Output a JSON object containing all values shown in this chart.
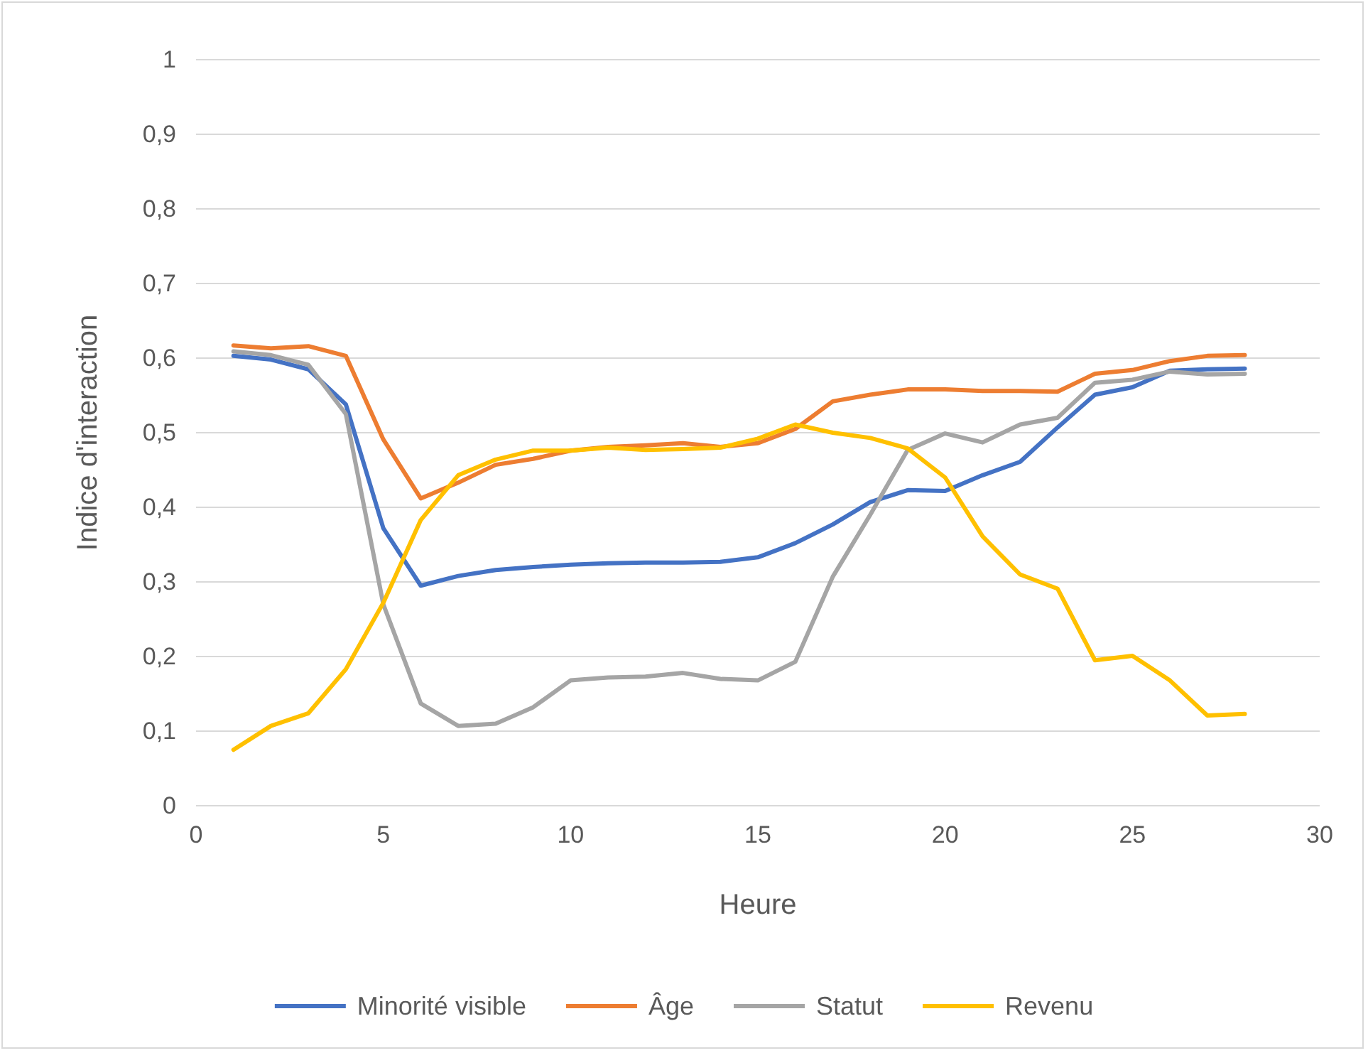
{
  "chart_data": {
    "type": "line",
    "xlabel": "Heure",
    "ylabel": "Indice d'interaction",
    "x": [
      1,
      2,
      3,
      4,
      5,
      6,
      7,
      8,
      9,
      10,
      11,
      12,
      13,
      14,
      15,
      16,
      17,
      18,
      19,
      20,
      21,
      22,
      23,
      24,
      25,
      26,
      27,
      28
    ],
    "series": [
      {
        "name": "Minorité visible",
        "color": "#4472c4",
        "values": [
          0.603,
          0.598,
          0.585,
          0.538,
          0.372,
          0.295,
          0.308,
          0.316,
          0.32,
          0.323,
          0.325,
          0.326,
          0.326,
          0.327,
          0.333,
          0.352,
          0.377,
          0.407,
          0.423,
          0.422,
          0.443,
          0.461,
          0.507,
          0.551,
          0.561,
          0.583,
          0.585,
          0.586
        ]
      },
      {
        "name": "Âge",
        "color": "#ed7d31",
        "values": [
          0.617,
          0.613,
          0.616,
          0.603,
          0.491,
          0.412,
          0.433,
          0.457,
          0.465,
          0.476,
          0.481,
          0.483,
          0.486,
          0.481,
          0.486,
          0.505,
          0.542,
          0.551,
          0.558,
          0.558,
          0.556,
          0.556,
          0.555,
          0.579,
          0.584,
          0.596,
          0.603,
          0.604
        ]
      },
      {
        "name": "Statut",
        "color": "#a5a5a5",
        "values": [
          0.609,
          0.604,
          0.591,
          0.525,
          0.27,
          0.137,
          0.107,
          0.11,
          0.132,
          0.168,
          0.172,
          0.173,
          0.178,
          0.17,
          0.168,
          0.193,
          0.307,
          0.39,
          0.477,
          0.499,
          0.487,
          0.511,
          0.52,
          0.567,
          0.571,
          0.582,
          0.578,
          0.579
        ]
      },
      {
        "name": "Revenu",
        "color": "#ffc000",
        "values": [
          0.075,
          0.107,
          0.124,
          0.183,
          0.272,
          0.383,
          0.443,
          0.464,
          0.476,
          0.476,
          0.48,
          0.477,
          0.478,
          0.48,
          0.492,
          0.511,
          0.5,
          0.493,
          0.479,
          0.44,
          0.361,
          0.31,
          0.291,
          0.195,
          0.201,
          0.168,
          0.121,
          0.123
        ]
      }
    ],
    "xlim": [
      0,
      30
    ],
    "xticks": [
      0,
      5,
      10,
      15,
      20,
      25,
      30
    ],
    "ylim": [
      0,
      1
    ],
    "yticks": [
      0,
      {
        "value": 0.1,
        "label": "0,1"
      },
      {
        "value": 0.2,
        "label": "0,2"
      },
      {
        "value": 0.3,
        "label": "0,3"
      },
      {
        "value": 0.4,
        "label": "0,4"
      },
      {
        "value": 0.5,
        "label": "0,5"
      },
      {
        "value": 0.6,
        "label": "0,6"
      },
      {
        "value": 0.7,
        "label": "0,7"
      },
      {
        "value": 0.8,
        "label": "0,8"
      },
      {
        "value": 0.9,
        "label": "0,9"
      },
      1
    ],
    "grid": "y",
    "legend": "bottom",
    "marker": "none",
    "line_style": "solid"
  }
}
